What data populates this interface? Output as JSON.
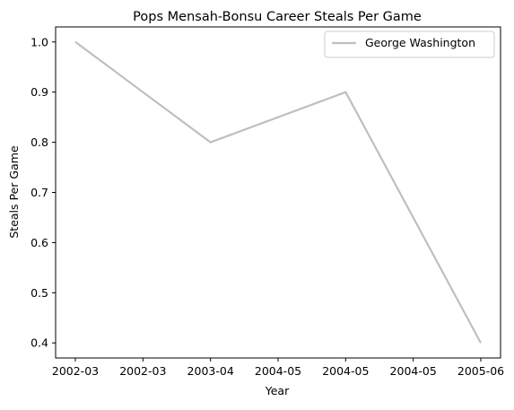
{
  "chart_data": {
    "type": "line",
    "title": "Pops Mensah-Bonsu Career Steals Per Game",
    "xlabel": "Year",
    "ylabel": "Steals Per Game",
    "x_tick_labels": [
      "2002-03",
      "2002-03",
      "2003-04",
      "2004-05",
      "2004-05",
      "2004-05",
      "2005-06"
    ],
    "y_tick_labels": [
      "1.0",
      "0.9",
      "0.8",
      "0.7",
      "0.6",
      "0.5",
      "0.4"
    ],
    "y_ticks": [
      1.0,
      0.9,
      0.8,
      0.7,
      0.6,
      0.5,
      0.4
    ],
    "ylim": [
      0.37,
      1.03
    ],
    "x": [
      "2002-03",
      "2003-04",
      "2004-05",
      "2005-06"
    ],
    "series": [
      {
        "name": "George Washington",
        "values": [
          1.0,
          0.8,
          0.9,
          0.4
        ],
        "color": "#bfbfbf"
      }
    ],
    "grid": false,
    "legend_position": "top-right"
  }
}
